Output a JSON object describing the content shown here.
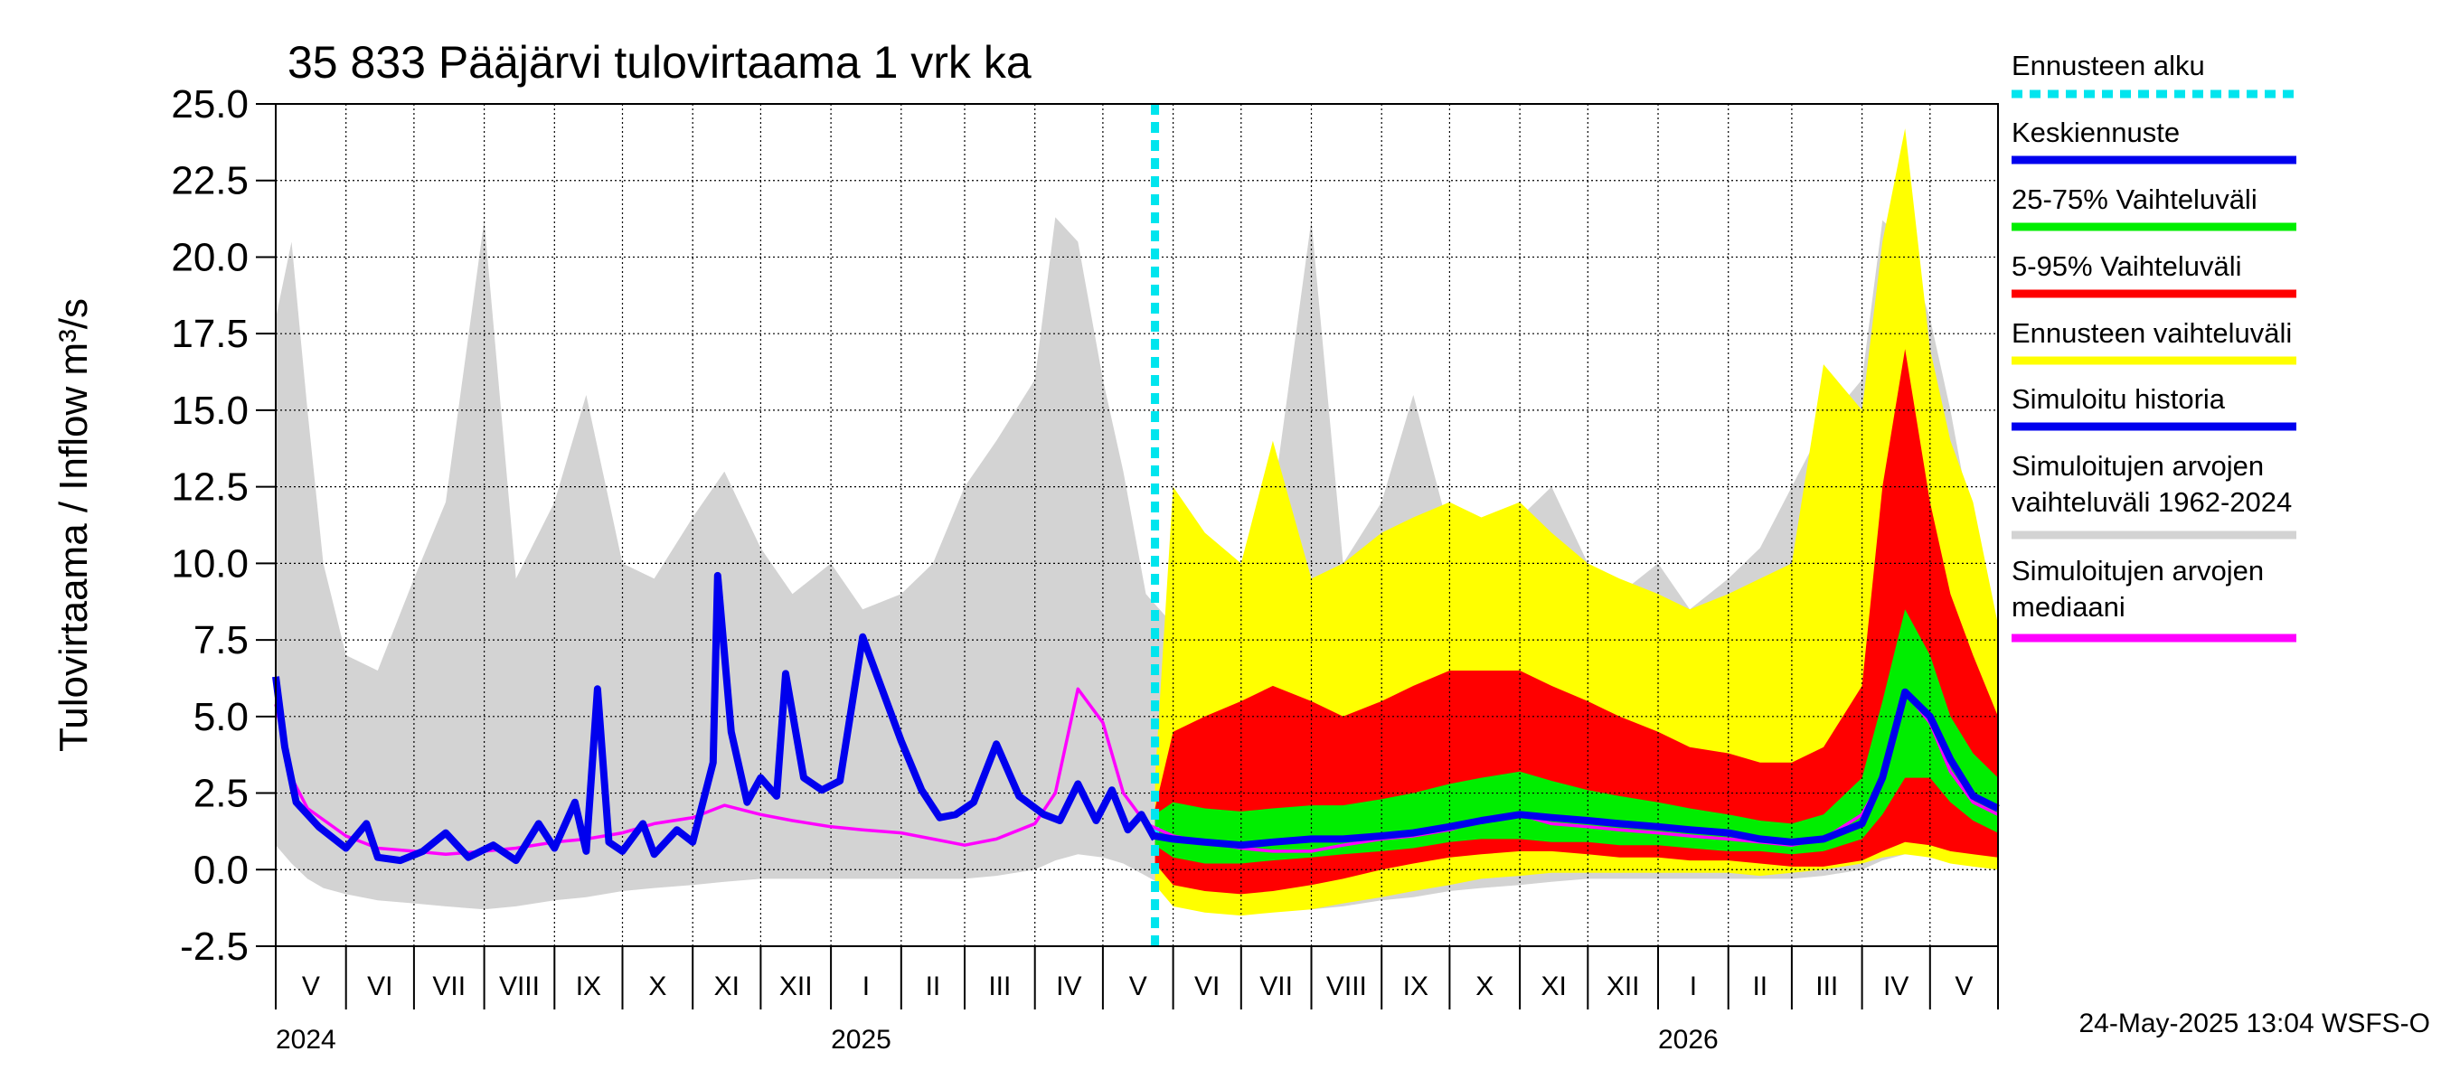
{
  "chart_data": {
    "type": "area",
    "title": "35 833 Pääjärvi tulovirtaama 1 vrk ka",
    "ylabel": "Tulovirtaama / Inflow    m³/s",
    "ylim": [
      -2.5,
      25.0
    ],
    "yticks": [
      "25.0",
      "22.5",
      "20.0",
      "17.5",
      "15.0",
      "12.5",
      "10.0",
      "7.5",
      "5.0",
      "2.5",
      "0.0",
      "-2.5"
    ],
    "x_start": "2024-05-01",
    "x_end": "2026-05-31",
    "forecast_start": "2025-05-24",
    "months": [
      "V",
      "VI",
      "VII",
      "VIII",
      "IX",
      "X",
      "XI",
      "XII",
      "I",
      "II",
      "III",
      "IV",
      "V",
      "VI",
      "VII",
      "VIII",
      "IX",
      "X",
      "XI",
      "XII",
      "I",
      "II",
      "III",
      "IV",
      "V"
    ],
    "years": [
      "2024",
      "2025",
      "2026"
    ],
    "grid": true,
    "legend_position": "right",
    "legend": [
      {
        "label": "Ennusteen alku",
        "color": "#00e5ee",
        "style": "dotted"
      },
      {
        "label": "Keskiennuste",
        "color": "#0000ee",
        "style": "solid"
      },
      {
        "label": "25-75% Vaihteluväli",
        "color": "#00ee00",
        "style": "solid"
      },
      {
        "label": "5-95% Vaihteluväli",
        "color": "#ff0000",
        "style": "solid"
      },
      {
        "label": "Ennusteen vaihteluväli",
        "color": "#ffff00",
        "style": "solid"
      },
      {
        "label": "Simuloitu historia",
        "color": "#0000ee",
        "style": "solid"
      },
      {
        "label": "Simuloitujen arvojen vaihteluväli 1962-2024",
        "color": "#d3d3d3",
        "style": "solid"
      },
      {
        "label": "Simuloitujen arvojen mediaani",
        "color": "#ff00ff",
        "style": "solid"
      }
    ],
    "series": [
      {
        "name": "Simuloitujen arvojen vaihteluväli 1962-2024",
        "type": "band",
        "color": "#d3d3d3",
        "x": [
          "2024-05-01",
          "2024-05-08",
          "2024-05-15",
          "2024-05-22",
          "2024-06-01",
          "2024-06-15",
          "2024-07-01",
          "2024-07-15",
          "2024-08-01",
          "2024-08-15",
          "2024-09-01",
          "2024-09-15",
          "2024-10-01",
          "2024-10-15",
          "2024-11-01",
          "2024-11-15",
          "2024-12-01",
          "2024-12-15",
          "2025-01-01",
          "2025-01-15",
          "2025-02-01",
          "2025-02-15",
          "2025-03-01",
          "2025-03-15",
          "2025-04-01",
          "2025-04-10",
          "2025-04-20",
          "2025-05-01",
          "2025-05-10",
          "2025-05-20",
          "2025-06-01",
          "2025-06-15",
          "2025-07-01",
          "2025-07-15",
          "2025-08-01",
          "2025-08-15",
          "2025-09-01",
          "2025-09-15",
          "2025-10-01",
          "2025-10-15",
          "2025-11-01",
          "2025-11-15",
          "2025-12-01",
          "2025-12-15",
          "2026-01-01",
          "2026-01-15",
          "2026-02-01",
          "2026-02-15",
          "2026-03-01",
          "2026-03-15",
          "2026-04-01",
          "2026-04-10",
          "2026-04-20",
          "2026-05-01",
          "2026-05-10",
          "2026-05-20",
          "2026-05-31"
        ],
        "low": [
          0.8,
          0.2,
          -0.3,
          -0.6,
          -0.8,
          -1.0,
          -1.1,
          -1.2,
          -1.3,
          -1.2,
          -1.0,
          -0.9,
          -0.7,
          -0.6,
          -0.5,
          -0.4,
          -0.3,
          -0.3,
          -0.3,
          -0.3,
          -0.3,
          -0.3,
          -0.3,
          -0.2,
          0.0,
          0.3,
          0.5,
          0.4,
          0.2,
          -0.2,
          -0.7,
          -1.0,
          -1.1,
          -1.2,
          -1.3,
          -1.2,
          -1.0,
          -0.9,
          -0.7,
          -0.6,
          -0.5,
          -0.4,
          -0.3,
          -0.3,
          -0.3,
          -0.3,
          -0.3,
          -0.3,
          -0.3,
          -0.2,
          0.0,
          0.3,
          0.5,
          0.5,
          0.3,
          0.1,
          0.0
        ],
        "high": [
          18.0,
          20.5,
          15.0,
          10.0,
          7.0,
          6.5,
          9.5,
          12.0,
          21.2,
          9.5,
          12.0,
          15.5,
          10.0,
          9.5,
          11.5,
          13.0,
          10.5,
          9.0,
          10.0,
          8.5,
          9.0,
          10.0,
          12.5,
          14.0,
          16.0,
          21.3,
          20.5,
          16.0,
          13.0,
          9.0,
          8.0,
          7.5,
          9.0,
          12.0,
          21.2,
          10.0,
          12.0,
          15.5,
          11.0,
          10.0,
          11.5,
          12.5,
          10.0,
          9.0,
          10.0,
          8.5,
          9.5,
          10.5,
          12.5,
          14.5,
          16.0,
          21.2,
          20.5,
          18.0,
          15.0,
          11.0,
          7.5
        ]
      },
      {
        "name": "Ennusteen vaihteluväli",
        "type": "band",
        "color": "#ffff00",
        "x": [
          "2025-05-24",
          "2025-06-01",
          "2025-06-15",
          "2025-07-01",
          "2025-07-15",
          "2025-08-01",
          "2025-08-15",
          "2025-09-01",
          "2025-09-15",
          "2025-10-01",
          "2025-10-15",
          "2025-11-01",
          "2025-11-15",
          "2025-12-01",
          "2025-12-15",
          "2026-01-01",
          "2026-01-15",
          "2026-02-01",
          "2026-02-15",
          "2026-03-01",
          "2026-03-15",
          "2026-04-01",
          "2026-04-10",
          "2026-04-20",
          "2026-05-01",
          "2026-05-10",
          "2026-05-20",
          "2026-05-31"
        ],
        "low": [
          -0.5,
          -1.2,
          -1.4,
          -1.5,
          -1.4,
          -1.3,
          -1.1,
          -0.9,
          -0.7,
          -0.5,
          -0.3,
          -0.2,
          -0.1,
          -0.1,
          -0.1,
          -0.1,
          -0.1,
          -0.1,
          -0.2,
          -0.1,
          0.0,
          0.2,
          0.4,
          0.5,
          0.4,
          0.2,
          0.1,
          0.0
        ],
        "high": [
          3.0,
          12.5,
          11.0,
          10.0,
          14.0,
          9.5,
          10.0,
          11.0,
          11.5,
          12.0,
          11.5,
          12.0,
          11.0,
          10.0,
          9.5,
          9.0,
          8.5,
          9.0,
          9.5,
          10.0,
          16.5,
          15.0,
          20.5,
          24.2,
          17.0,
          14.0,
          12.0,
          8.0
        ]
      },
      {
        "name": "5-95% Vaihteluväli",
        "type": "band",
        "color": "#ff0000",
        "x": [
          "2025-05-24",
          "2025-06-01",
          "2025-06-15",
          "2025-07-01",
          "2025-07-15",
          "2025-08-01",
          "2025-08-15",
          "2025-09-01",
          "2025-09-15",
          "2025-10-01",
          "2025-10-15",
          "2025-11-01",
          "2025-11-15",
          "2025-12-01",
          "2025-12-15",
          "2026-01-01",
          "2026-01-15",
          "2026-02-01",
          "2026-02-15",
          "2026-03-01",
          "2026-03-15",
          "2026-04-01",
          "2026-04-10",
          "2026-04-20",
          "2026-05-01",
          "2026-05-10",
          "2026-05-20",
          "2026-05-31"
        ],
        "low": [
          0.2,
          -0.5,
          -0.7,
          -0.8,
          -0.7,
          -0.5,
          -0.3,
          0.0,
          0.2,
          0.4,
          0.5,
          0.6,
          0.6,
          0.5,
          0.4,
          0.4,
          0.3,
          0.3,
          0.2,
          0.1,
          0.1,
          0.3,
          0.6,
          0.9,
          0.8,
          0.6,
          0.5,
          0.4
        ],
        "high": [
          2.0,
          4.5,
          5.0,
          5.5,
          6.0,
          5.5,
          5.0,
          5.5,
          6.0,
          6.5,
          6.5,
          6.5,
          6.0,
          5.5,
          5.0,
          4.5,
          4.0,
          3.8,
          3.5,
          3.5,
          4.0,
          6.0,
          12.5,
          17.0,
          12.0,
          9.0,
          7.0,
          5.0
        ]
      },
      {
        "name": "25-75% Vaihteluväli",
        "type": "band",
        "color": "#00ee00",
        "x": [
          "2025-05-24",
          "2025-06-01",
          "2025-06-15",
          "2025-07-01",
          "2025-07-15",
          "2025-08-01",
          "2025-08-15",
          "2025-09-01",
          "2025-09-15",
          "2025-10-01",
          "2025-10-15",
          "2025-11-01",
          "2025-11-15",
          "2025-12-01",
          "2025-12-15",
          "2026-01-01",
          "2026-01-15",
          "2026-02-01",
          "2026-02-15",
          "2026-03-01",
          "2026-03-15",
          "2026-04-01",
          "2026-04-10",
          "2026-04-20",
          "2026-05-01",
          "2026-05-10",
          "2026-05-20",
          "2026-05-31"
        ],
        "low": [
          0.8,
          0.4,
          0.2,
          0.2,
          0.3,
          0.4,
          0.5,
          0.6,
          0.7,
          0.9,
          1.0,
          1.0,
          0.9,
          0.9,
          0.8,
          0.8,
          0.7,
          0.6,
          0.6,
          0.5,
          0.6,
          1.0,
          1.8,
          3.0,
          3.0,
          2.2,
          1.6,
          1.2
        ],
        "high": [
          1.8,
          2.2,
          2.0,
          1.9,
          2.0,
          2.1,
          2.1,
          2.3,
          2.5,
          2.8,
          3.0,
          3.2,
          2.9,
          2.6,
          2.4,
          2.2,
          2.0,
          1.8,
          1.6,
          1.5,
          1.8,
          3.0,
          5.5,
          8.5,
          7.0,
          5.0,
          3.8,
          3.0
        ]
      },
      {
        "name": "Simuloitujen arvojen mediaani",
        "type": "line",
        "color": "#ff00ff",
        "x": [
          "2024-05-01",
          "2024-05-08",
          "2024-05-15",
          "2024-06-01",
          "2024-06-15",
          "2024-07-01",
          "2024-07-15",
          "2024-08-01",
          "2024-08-15",
          "2024-09-01",
          "2024-09-15",
          "2024-10-01",
          "2024-10-15",
          "2024-11-01",
          "2024-11-15",
          "2024-12-01",
          "2024-12-15",
          "2025-01-01",
          "2025-01-15",
          "2025-02-01",
          "2025-02-15",
          "2025-03-01",
          "2025-03-15",
          "2025-04-01",
          "2025-04-10",
          "2025-04-20",
          "2025-05-01",
          "2025-05-10",
          "2025-05-20",
          "2025-06-01",
          "2025-06-15",
          "2025-07-01",
          "2025-07-15",
          "2025-08-01",
          "2025-08-15",
          "2025-09-01",
          "2025-09-15",
          "2025-10-01",
          "2025-10-15",
          "2025-11-01",
          "2025-11-15",
          "2025-12-01",
          "2025-12-15",
          "2026-01-01",
          "2026-01-15",
          "2026-02-01",
          "2026-02-15",
          "2026-03-01",
          "2026-03-15",
          "2026-04-01",
          "2026-04-10",
          "2026-04-20",
          "2026-05-01",
          "2026-05-10",
          "2026-05-20",
          "2026-05-31"
        ],
        "y": [
          5.4,
          3.0,
          2.0,
          1.1,
          0.7,
          0.6,
          0.5,
          0.6,
          0.7,
          0.9,
          1.0,
          1.2,
          1.5,
          1.7,
          2.1,
          1.8,
          1.6,
          1.4,
          1.3,
          1.2,
          1.0,
          0.8,
          1.0,
          1.5,
          2.5,
          5.9,
          4.8,
          2.5,
          1.5,
          1.1,
          0.9,
          0.7,
          0.6,
          0.6,
          0.8,
          1.0,
          1.1,
          1.3,
          1.6,
          1.8,
          1.5,
          1.4,
          1.3,
          1.2,
          1.1,
          1.0,
          0.9,
          0.8,
          1.0,
          1.8,
          3.0,
          5.8,
          4.8,
          3.2,
          2.2,
          1.8
        ]
      },
      {
        "name": "Simuloitu historia",
        "type": "line",
        "color": "#0000ee",
        "x": [
          "2024-05-01",
          "2024-05-05",
          "2024-05-10",
          "2024-05-20",
          "2024-06-01",
          "2024-06-10",
          "2024-06-15",
          "2024-06-25",
          "2024-07-05",
          "2024-07-15",
          "2024-07-25",
          "2024-08-05",
          "2024-08-15",
          "2024-08-25",
          "2024-09-01",
          "2024-09-10",
          "2024-09-15",
          "2024-09-20",
          "2024-09-25",
          "2024-10-01",
          "2024-10-10",
          "2024-10-15",
          "2024-10-25",
          "2024-11-01",
          "2024-11-10",
          "2024-11-12",
          "2024-11-18",
          "2024-11-25",
          "2024-12-01",
          "2024-12-08",
          "2024-12-12",
          "2024-12-20",
          "2024-12-28",
          "2025-01-05",
          "2025-01-15",
          "2025-02-01",
          "2025-02-10",
          "2025-02-18",
          "2025-02-25",
          "2025-03-05",
          "2025-03-15",
          "2025-03-25",
          "2025-04-05",
          "2025-04-12",
          "2025-04-20",
          "2025-04-28",
          "2025-05-05",
          "2025-05-12",
          "2025-05-18",
          "2025-05-24"
        ],
        "y": [
          6.3,
          4.0,
          2.2,
          1.4,
          0.7,
          1.5,
          0.4,
          0.3,
          0.6,
          1.2,
          0.4,
          0.8,
          0.3,
          1.5,
          0.7,
          2.2,
          0.6,
          5.9,
          0.9,
          0.6,
          1.5,
          0.5,
          1.3,
          0.9,
          3.5,
          9.6,
          4.5,
          2.2,
          3.0,
          2.4,
          6.4,
          3.0,
          2.6,
          2.9,
          7.6,
          4.2,
          2.6,
          1.7,
          1.8,
          2.2,
          4.1,
          2.4,
          1.8,
          1.6,
          2.8,
          1.6,
          2.6,
          1.3,
          1.8,
          1.0
        ]
      },
      {
        "name": "Keskiennuste",
        "type": "line",
        "color": "#0000ee",
        "x": [
          "2025-05-24",
          "2025-06-01",
          "2025-06-15",
          "2025-07-01",
          "2025-07-15",
          "2025-08-01",
          "2025-08-15",
          "2025-09-01",
          "2025-09-15",
          "2025-10-01",
          "2025-10-15",
          "2025-11-01",
          "2025-11-15",
          "2025-12-01",
          "2025-12-15",
          "2026-01-01",
          "2026-01-15",
          "2026-02-01",
          "2026-02-15",
          "2026-03-01",
          "2026-03-15",
          "2026-04-01",
          "2026-04-10",
          "2026-04-20",
          "2026-05-01",
          "2026-05-10",
          "2026-05-20",
          "2026-05-31"
        ],
        "y": [
          1.1,
          1.0,
          0.9,
          0.8,
          0.9,
          1.0,
          1.0,
          1.1,
          1.2,
          1.4,
          1.6,
          1.8,
          1.7,
          1.6,
          1.5,
          1.4,
          1.3,
          1.2,
          1.0,
          0.9,
          1.0,
          1.5,
          3.0,
          5.8,
          5.0,
          3.6,
          2.4,
          2.0
        ]
      }
    ]
  },
  "footer": "24-May-2025 13:04 WSFS-O"
}
